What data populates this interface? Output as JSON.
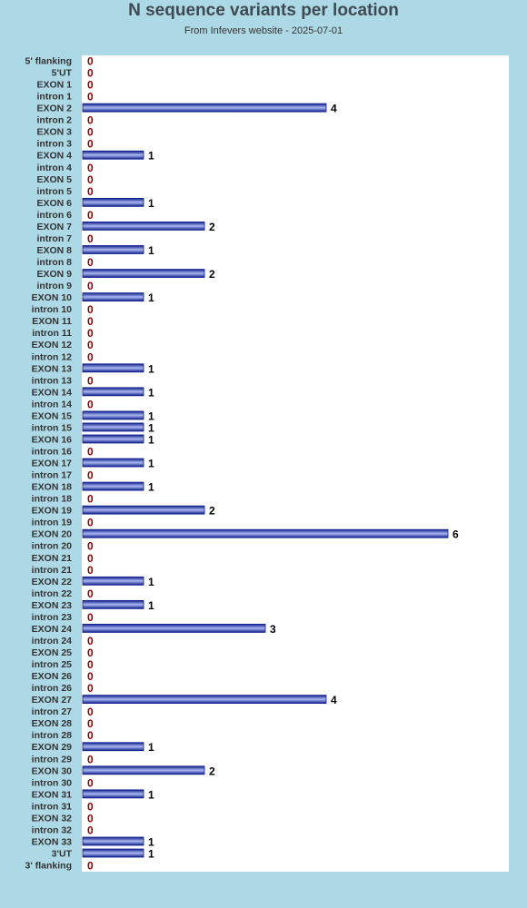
{
  "chart_data": {
    "type": "bar",
    "orientation": "horizontal",
    "title": "N sequence variants per location",
    "subtitle": "From Infevers website - 2025-07-01",
    "xlim": [
      0,
      7
    ],
    "grid": false,
    "legend": "none",
    "colors": {
      "background": "#add8e6",
      "plot_background": "#ffffff",
      "bar_dark": "#0f1e8c",
      "bar_light": "#aab8f0",
      "label_text": "#333333",
      "nonzero_value": "#000000",
      "zero_value": "#8b0000"
    },
    "categories": [
      "5' flanking",
      "5'UT",
      "EXON 1",
      "intron 1",
      "EXON 2",
      "intron 2",
      "EXON 3",
      "intron 3",
      "EXON 4",
      "intron 4",
      "EXON 5",
      "intron 5",
      "EXON 6",
      "intron 6",
      "EXON 7",
      "intron 7",
      "EXON 8",
      "intron 8",
      "EXON 9",
      "intron 9",
      "EXON 10",
      "intron 10",
      "EXON 11",
      "intron 11",
      "EXON 12",
      "intron 12",
      "EXON 13",
      "intron 13",
      "EXON 14",
      "intron 14",
      "EXON 15",
      "intron 15",
      "EXON 16",
      "intron 16",
      "EXON 17",
      "intron 17",
      "EXON 18",
      "intron 18",
      "EXON 19",
      "intron 19",
      "EXON 20",
      "intron 20",
      "EXON 21",
      "intron 21",
      "EXON 22",
      "intron 22",
      "EXON 23",
      "intron 23",
      "EXON 24",
      "intron 24",
      "EXON 25",
      "intron 25",
      "EXON 26",
      "intron 26",
      "EXON 27",
      "intron 27",
      "EXON 28",
      "intron 28",
      "EXON 29",
      "intron 29",
      "EXON 30",
      "intron 30",
      "EXON 31",
      "intron 31",
      "EXON 32",
      "intron 32",
      "EXON 33",
      "3'UT",
      "3' flanking"
    ],
    "values": [
      0,
      0,
      0,
      0,
      4,
      0,
      0,
      0,
      1,
      0,
      0,
      0,
      1,
      0,
      2,
      0,
      1,
      0,
      2,
      0,
      1,
      0,
      0,
      0,
      0,
      0,
      1,
      0,
      1,
      0,
      1,
      1,
      1,
      0,
      1,
      0,
      1,
      0,
      2,
      0,
      6,
      0,
      0,
      0,
      1,
      0,
      1,
      0,
      3,
      0,
      0,
      0,
      0,
      0,
      4,
      0,
      0,
      0,
      1,
      0,
      2,
      0,
      1,
      0,
      0,
      0,
      1,
      1,
      0
    ]
  }
}
